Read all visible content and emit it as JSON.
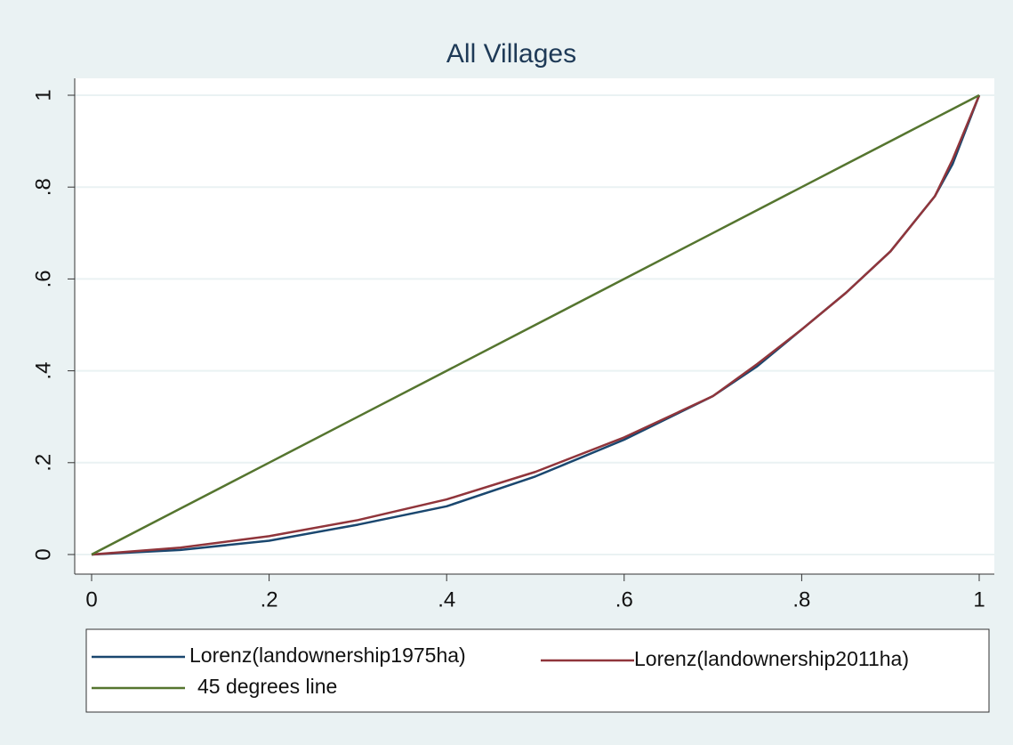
{
  "chart_data": {
    "type": "line",
    "title": "All Villages",
    "x": [
      0,
      0.1,
      0.2,
      0.3,
      0.4,
      0.5,
      0.6,
      0.7,
      0.75,
      0.8,
      0.85,
      0.9,
      0.95,
      0.97,
      1
    ],
    "series": [
      {
        "name": "Lorenz(landownership1975ha)",
        "color": "#1a476f",
        "values": [
          0,
          0.01,
          0.03,
          0.065,
          0.105,
          0.17,
          0.25,
          0.345,
          0.41,
          0.49,
          0.57,
          0.66,
          0.78,
          0.85,
          1
        ]
      },
      {
        "name": "Lorenz(landownership2011ha)",
        "color": "#90353b",
        "values": [
          0,
          0.015,
          0.04,
          0.075,
          0.12,
          0.18,
          0.255,
          0.345,
          0.415,
          0.49,
          0.57,
          0.66,
          0.78,
          0.86,
          1
        ]
      },
      {
        "name": "45 degrees line",
        "color": "#55752f",
        "values": [
          0,
          0.1,
          0.2,
          0.3,
          0.4,
          0.5,
          0.6,
          0.7,
          0.75,
          0.8,
          0.85,
          0.9,
          0.95,
          0.97,
          1
        ]
      }
    ],
    "xlim": [
      0,
      1
    ],
    "ylim": [
      0,
      1
    ],
    "xticks": [
      0,
      {
        "value": 0.2,
        "label": ".2"
      },
      {
        "value": 0.4,
        "label": ".4"
      },
      {
        "value": 0.6,
        "label": ".6"
      },
      {
        "value": 0.8,
        "label": ".8"
      },
      1
    ],
    "yticks": [
      0,
      {
        "value": 0.2,
        "label": ".2"
      },
      {
        "value": 0.4,
        "label": ".4"
      },
      {
        "value": 0.6,
        "label": ".6"
      },
      {
        "value": 0.8,
        "label": ".8"
      },
      1
    ],
    "grid": true
  }
}
